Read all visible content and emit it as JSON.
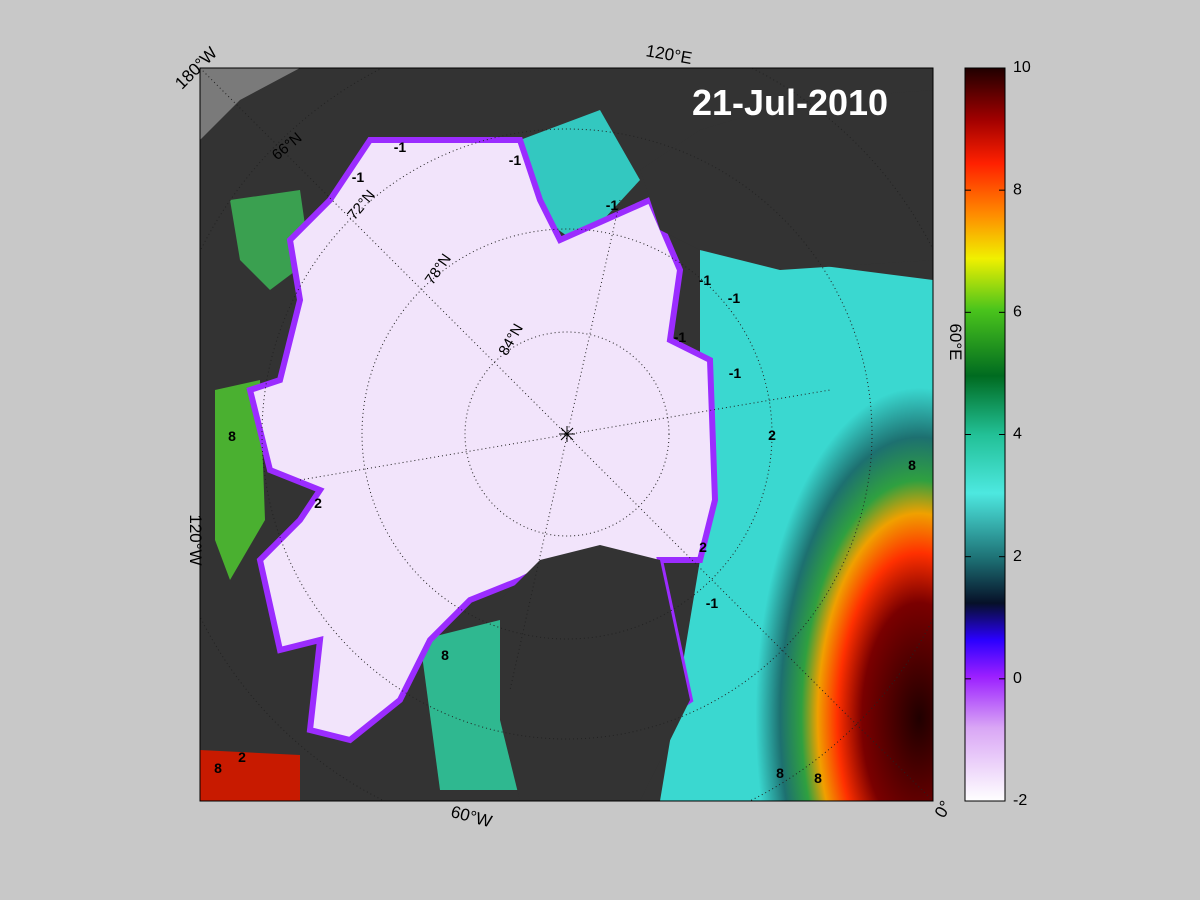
{
  "title": "21-Jul-2010",
  "map": {
    "longitude_labels": [
      "180°W",
      "120°E",
      "60°E",
      "0°",
      "60°W",
      "120°W"
    ],
    "latitude_labels": [
      "66°N",
      "72°N",
      "78°N",
      "84°N"
    ],
    "contour_labels": [
      "-1",
      "-1",
      "-1",
      "-1",
      "2",
      "-1",
      "-1",
      "-1",
      "-1",
      "2",
      "8",
      "2",
      "-1",
      "8",
      "8",
      "2",
      "8",
      "8",
      "8"
    ]
  },
  "colorbar": {
    "lim": [
      -2,
      10
    ],
    "ticks": [
      -2,
      0,
      2,
      4,
      6,
      8,
      10
    ]
  }
}
